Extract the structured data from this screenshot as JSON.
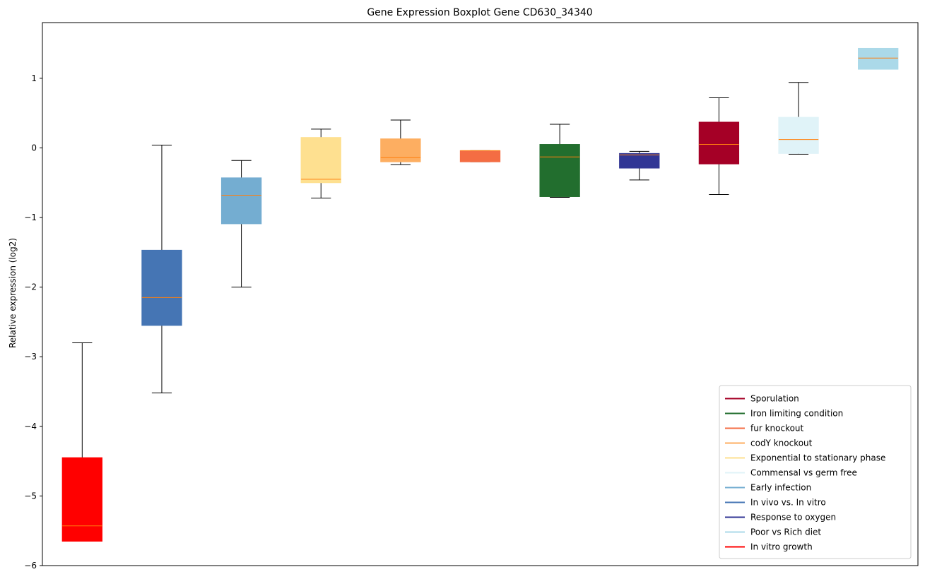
{
  "chart_data": {
    "type": "boxplot",
    "title": "Gene Expression Boxplot Gene CD630_34340",
    "xlabel": "",
    "ylabel": "Relative expression (log2)",
    "ylim": [
      -6,
      1.8
    ],
    "yticks": [
      -6,
      -5,
      -4,
      -3,
      -2,
      -1,
      0,
      1
    ],
    "ytick_labels": [
      "−6",
      "−5",
      "−4",
      "−3",
      "−2",
      "−1",
      "0",
      "1"
    ],
    "median_color": "#ff7f0e",
    "whisker_color": "#000000",
    "boxes": [
      {
        "label": "In vitro growth",
        "color": "#ff0000",
        "whislo": -5.65,
        "q1": -5.65,
        "median": -5.43,
        "q3": -4.45,
        "whishi": -2.8
      },
      {
        "label": "In vivo vs. In vitro",
        "color": "#4575b4",
        "whislo": -3.52,
        "q1": -2.55,
        "median": -2.15,
        "q3": -1.47,
        "whishi": 0.04
      },
      {
        "label": "Early infection",
        "color": "#74add1",
        "whislo": -2.0,
        "q1": -1.09,
        "median": -0.68,
        "q3": -0.43,
        "whishi": -0.18
      },
      {
        "label": "Exponential to stationary phase",
        "color": "#fee090",
        "whislo": -0.72,
        "q1": -0.5,
        "median": -0.45,
        "q3": 0.15,
        "whishi": 0.27
      },
      {
        "label": "codY knockout",
        "color": "#fdae61",
        "whislo": -0.24,
        "q1": -0.2,
        "median": -0.14,
        "q3": 0.13,
        "whishi": 0.4
      },
      {
        "label": "fur knockout",
        "color": "#f46d43",
        "whislo": -0.2,
        "q1": -0.2,
        "median": -0.04,
        "q3": -0.04,
        "whishi": -0.04
      },
      {
        "label": "Iron limiting condition",
        "color": "#226e2e",
        "whislo": -0.71,
        "q1": -0.7,
        "median": -0.13,
        "q3": 0.05,
        "whishi": 0.34
      },
      {
        "label": "Response to oxygen",
        "color": "#313695",
        "whislo": -0.46,
        "q1": -0.29,
        "median": -0.1,
        "q3": -0.08,
        "whishi": -0.05
      },
      {
        "label": "Sporulation",
        "color": "#a50026",
        "whislo": -0.67,
        "q1": -0.23,
        "median": 0.05,
        "q3": 0.37,
        "whishi": 0.72
      },
      {
        "label": "Commensal vs germ free",
        "color": "#e0f3f8",
        "whislo": -0.09,
        "q1": -0.08,
        "median": 0.12,
        "q3": 0.44,
        "whishi": 0.94
      },
      {
        "label": "Poor vs Rich diet",
        "color": "#abd9e9",
        "whislo": 1.13,
        "q1": 1.13,
        "median": 1.29,
        "q3": 1.43,
        "whishi": 1.43
      }
    ],
    "legend": {
      "location": "lower right",
      "entries": [
        {
          "label": "Sporulation",
          "color": "#a50026"
        },
        {
          "label": "Iron limiting condition",
          "color": "#226e2e"
        },
        {
          "label": "fur knockout",
          "color": "#f46d43"
        },
        {
          "label": "codY knockout",
          "color": "#fdae61"
        },
        {
          "label": "Exponential to stationary phase",
          "color": "#fee090"
        },
        {
          "label": "Commensal vs germ free",
          "color": "#e0f3f8"
        },
        {
          "label": "Early infection",
          "color": "#74add1"
        },
        {
          "label": "In vivo vs. In vitro",
          "color": "#4575b4"
        },
        {
          "label": "Response to oxygen",
          "color": "#313695"
        },
        {
          "label": "Poor vs Rich diet",
          "color": "#abd9e9"
        },
        {
          "label": "In vitro growth",
          "color": "#ff0000"
        }
      ]
    }
  }
}
